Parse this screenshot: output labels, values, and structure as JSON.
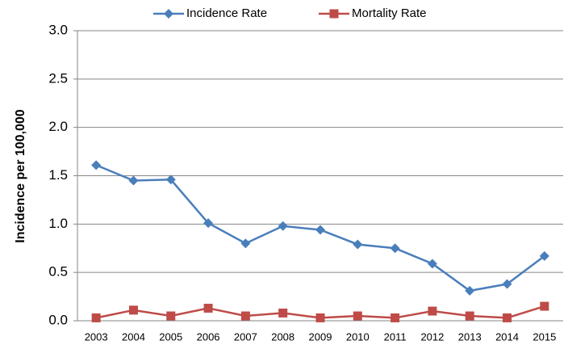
{
  "chart_data": {
    "type": "line",
    "y_label": "Incidence per 100,000",
    "categories": [
      "2003",
      "2004",
      "2005",
      "2006",
      "2007",
      "2008",
      "2009",
      "2010",
      "2011",
      "2012",
      "2013",
      "2014",
      "2015"
    ],
    "series": [
      {
        "name": "Incidence Rate",
        "color": "#4a7ebb",
        "marker": "diamond",
        "values": [
          1.61,
          1.45,
          1.46,
          1.01,
          0.8,
          0.98,
          0.94,
          0.79,
          0.75,
          0.59,
          0.31,
          0.38,
          0.67
        ]
      },
      {
        "name": "Mortality Rate",
        "color": "#be4b48",
        "marker": "square",
        "values": [
          0.03,
          0.11,
          0.05,
          0.13,
          0.05,
          0.08,
          0.03,
          0.05,
          0.03,
          0.1,
          0.05,
          0.03,
          0.15
        ]
      }
    ],
    "ylim": [
      0,
      3
    ],
    "yticks": [
      {
        "value": 0,
        "label": "0.0"
      },
      {
        "value": 0.5,
        "label": "0.5"
      },
      {
        "value": 1,
        "label": "1.0"
      },
      {
        "value": 1.5,
        "label": "1.5"
      },
      {
        "value": 2,
        "label": "2.0"
      },
      {
        "value": 2.5,
        "label": "2.5"
      },
      {
        "value": 3,
        "label": "3.0"
      }
    ],
    "grid": true,
    "legend": "top"
  }
}
